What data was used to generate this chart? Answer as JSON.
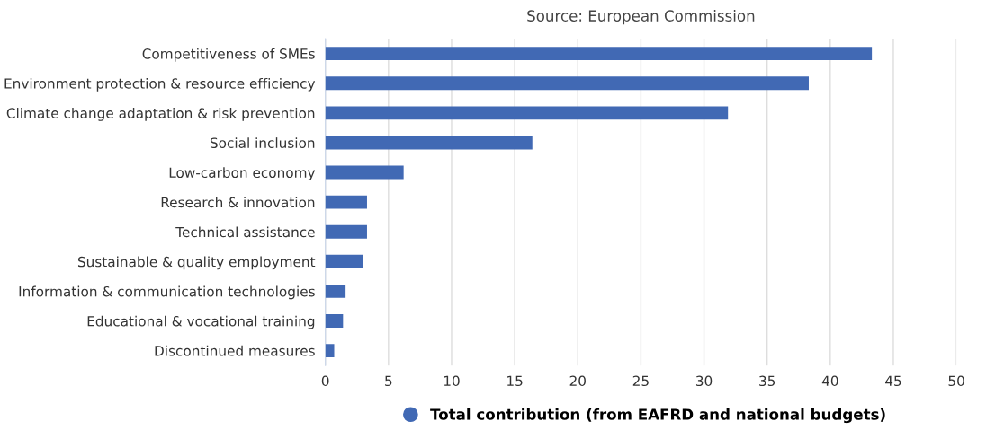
{
  "chart_data": {
    "type": "bar",
    "orientation": "horizontal",
    "title": "Source: European Commission",
    "categories": [
      "Competitiveness of SMEs",
      "Environment protection & resource efficiency",
      "Climate change adaptation & risk prevention",
      "Social inclusion",
      "Low-carbon economy",
      "Research & innovation",
      "Technical assistance",
      "Sustainable & quality employment",
      "Information & communication technologies",
      "Educational & vocational training",
      "Discontinued measures"
    ],
    "series": [
      {
        "name": "Total contribution (from EAFRD and national budgets)",
        "color": "#4169b4",
        "values": [
          43.3,
          38.3,
          31.9,
          16.4,
          6.2,
          3.3,
          3.3,
          3.0,
          1.6,
          1.4,
          0.7
        ]
      }
    ],
    "xlim": [
      0,
      50
    ],
    "xticks": [
      0,
      5,
      10,
      15,
      20,
      25,
      30,
      35,
      40,
      45,
      50
    ],
    "grid": "x",
    "legend": "bottom",
    "marker": "circle"
  }
}
